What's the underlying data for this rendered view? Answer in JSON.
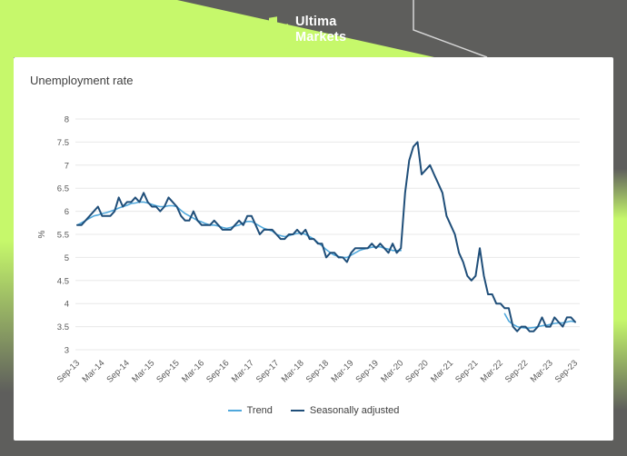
{
  "header": {
    "brand_line1": "Ultima",
    "brand_line2": "Markets"
  },
  "colors": {
    "background": "#5E5E5C",
    "accent_lime": "#C6F86B",
    "card": "#FFFFFF",
    "title_text": "#404040",
    "axis_text": "#595959",
    "gridline": "#E8E8E8",
    "trend_line": "#4FA8DC",
    "seasonally_adjusted_line": "#1F4E79",
    "decor_outline": "rgba(255,255,255,0.75)"
  },
  "chart_data": {
    "type": "line",
    "title": "Unemployment rate",
    "ylabel": "%",
    "ylim": [
      3,
      8
    ],
    "ytick_step": 0.5,
    "yticks": [
      "8",
      "7.5",
      "7",
      "6.5",
      "6",
      "5.5",
      "5",
      "4.5",
      "4",
      "3.5",
      "3"
    ],
    "grid": "horizontal",
    "legend_position": "bottom",
    "n_points": 121,
    "x_start": "Sep-13",
    "x_end": "Sep-23",
    "x_tick_interval_months": 6,
    "x_tick_labels": [
      "Sep-13",
      "Mar-14",
      "Sep-14",
      "Mar-15",
      "Sep-15",
      "Mar-16",
      "Sep-16",
      "Mar-17",
      "Sep-17",
      "Mar-18",
      "Sep-18",
      "Mar-19",
      "Sep-19",
      "Mar-20",
      "Sep-20",
      "Mar-21",
      "Sep-21",
      "Mar-22",
      "Sep-22",
      "Mar-23",
      "Sep-23"
    ],
    "series": [
      {
        "name": "Trend",
        "color_key": "trend_line",
        "width": 1.6,
        "values": [
          5.7,
          5.75,
          5.8,
          5.85,
          5.9,
          5.92,
          5.95,
          5.97,
          6.0,
          6.03,
          6.07,
          6.1,
          6.13,
          6.17,
          6.18,
          6.2,
          6.2,
          6.18,
          6.15,
          6.12,
          6.1,
          6.1,
          6.12,
          6.12,
          6.1,
          6.02,
          5.95,
          5.9,
          5.85,
          5.8,
          5.77,
          5.73,
          5.7,
          5.7,
          5.68,
          5.65,
          5.63,
          5.65,
          5.68,
          5.7,
          5.75,
          5.78,
          5.78,
          5.73,
          5.68,
          5.63,
          5.6,
          5.57,
          5.5,
          5.47,
          5.45,
          5.47,
          5.5,
          5.52,
          5.53,
          5.5,
          5.45,
          5.4,
          5.32,
          5.25,
          5.17,
          5.1,
          5.05,
          5.02,
          5.0,
          5.0,
          5.05,
          5.1,
          5.15,
          5.18,
          5.2,
          5.22,
          5.23,
          5.23,
          5.2,
          5.18,
          5.15,
          5.15,
          5.15,
          null,
          null,
          null,
          null,
          null,
          null,
          null,
          null,
          null,
          null,
          null,
          null,
          null,
          null,
          null,
          null,
          null,
          null,
          null,
          null,
          null,
          null,
          null,
          null,
          3.78,
          3.62,
          3.55,
          3.5,
          3.48,
          3.47,
          3.47,
          3.48,
          3.5,
          3.52,
          3.53,
          3.55,
          3.57,
          3.58,
          3.58,
          3.6,
          3.62,
          3.6
        ]
      },
      {
        "name": "Seasonally adjusted",
        "color_key": "seasonally_adjusted_line",
        "width": 2,
        "values": [
          5.7,
          5.7,
          5.8,
          5.9,
          6.0,
          6.1,
          5.9,
          5.9,
          5.9,
          6.0,
          6.3,
          6.1,
          6.2,
          6.2,
          6.3,
          6.2,
          6.4,
          6.2,
          6.1,
          6.1,
          6.0,
          6.1,
          6.3,
          6.2,
          6.1,
          5.9,
          5.8,
          5.8,
          6.0,
          5.8,
          5.7,
          5.7,
          5.7,
          5.8,
          5.7,
          5.6,
          5.6,
          5.6,
          5.7,
          5.8,
          5.7,
          5.9,
          5.9,
          5.7,
          5.5,
          5.6,
          5.6,
          5.6,
          5.5,
          5.4,
          5.4,
          5.5,
          5.5,
          5.6,
          5.5,
          5.6,
          5.4,
          5.4,
          5.3,
          5.3,
          5.0,
          5.1,
          5.1,
          5.0,
          5.0,
          4.9,
          5.1,
          5.2,
          5.2,
          5.2,
          5.2,
          5.3,
          5.2,
          5.3,
          5.2,
          5.1,
          5.3,
          5.1,
          5.2,
          6.4,
          7.1,
          7.4,
          7.5,
          6.8,
          6.9,
          7.0,
          6.8,
          6.6,
          6.4,
          5.9,
          5.7,
          5.5,
          5.1,
          4.9,
          4.6,
          4.5,
          4.6,
          5.2,
          4.6,
          4.2,
          4.2,
          4.0,
          4.0,
          3.9,
          3.9,
          3.5,
          3.4,
          3.5,
          3.5,
          3.4,
          3.4,
          3.5,
          3.7,
          3.5,
          3.5,
          3.7,
          3.6,
          3.5,
          3.7,
          3.7,
          3.6
        ]
      }
    ]
  },
  "legend": {
    "items": [
      {
        "label": "Trend"
      },
      {
        "label": "Seasonally adjusted"
      }
    ]
  }
}
